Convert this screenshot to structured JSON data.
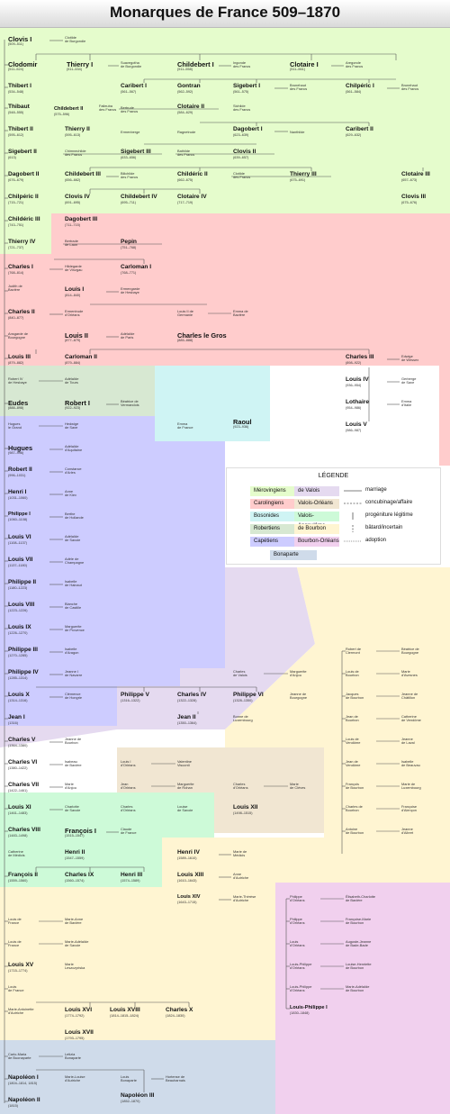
{
  "title": "Monarques de France 509–1870",
  "legend": {
    "title": "LÉGENDE",
    "dynasties": [
      {
        "label": "Mérovingiens",
        "color": "#e5fccc"
      },
      {
        "label": "de Valois",
        "color": "#e5daf0"
      },
      {
        "label": "Carolingiens",
        "color": "#ffcccc"
      },
      {
        "label": "Valois-Orléans",
        "color": "#f1e6d2"
      },
      {
        "label": "Bosonides",
        "color": "#cff4f4"
      },
      {
        "label": "Valois-Angoulême",
        "color": "#cdfad8"
      },
      {
        "label": "Robertiens",
        "color": "#d7e8d2"
      },
      {
        "label": "de Bourbon",
        "color": "#fff5d2"
      },
      {
        "label": "Capétiens",
        "color": "#cdccff"
      },
      {
        "label": "Bourbon-Orléans",
        "color": "#f1d0ee"
      },
      {
        "label": "Bonaparte",
        "color": "#cfdbea"
      }
    ],
    "lines": [
      {
        "label": "marriage",
        "style": "solid"
      },
      {
        "label": "concubinage/affaire",
        "style": "dash"
      },
      {
        "label": "progéniture légitime",
        "style": "vertical"
      },
      {
        "label": "bâtard/incertain",
        "style": "dashvertical"
      },
      {
        "label": "adoption",
        "style": "dotted"
      }
    ]
  },
  "monarchs": [
    {
      "id": "clovis1",
      "name": "Clovis I",
      "dates": "(509–511)",
      "big": true
    },
    {
      "id": "clodomir",
      "name": "Clodomir",
      "dates": "(511–524)",
      "big": true
    },
    {
      "id": "thierry1",
      "name": "Thierry I",
      "dates": "(511–534)",
      "big": true
    },
    {
      "id": "childebert1",
      "name": "Childebert I",
      "dates": "(511–558)",
      "big": true
    },
    {
      "id": "clotaire1",
      "name": "Clotaire I",
      "dates": "(511–561)",
      "big": true
    },
    {
      "id": "thibert1",
      "name": "Thibert I",
      "dates": "(534–548)"
    },
    {
      "id": "caribert1",
      "name": "Caribert I",
      "dates": "(561–567)"
    },
    {
      "id": "gontran",
      "name": "Gontran",
      "dates": "(562–592)"
    },
    {
      "id": "sigebert1",
      "name": "Sigebert I",
      "dates": "(561–575)"
    },
    {
      "id": "chilperic1",
      "name": "Chilpéric I",
      "dates": "(561–584)"
    },
    {
      "id": "thibaut",
      "name": "Thibaut",
      "dates": "(548–555)"
    },
    {
      "id": "childebert2",
      "name": "Childebert II",
      "dates": "(575–596)",
      "small": true
    },
    {
      "id": "clotaire2",
      "name": "Clotaire II",
      "dates": "(584–629)"
    },
    {
      "id": "thibert2",
      "name": "Thibert II",
      "dates": "(595–612)"
    },
    {
      "id": "thierry2",
      "name": "Thierry II",
      "dates": "(595–613)"
    },
    {
      "id": "dagobert1",
      "name": "Dagobert I",
      "dates": "(623–639)"
    },
    {
      "id": "caribert2",
      "name": "Caribert II",
      "dates": "(629–632)"
    },
    {
      "id": "sigebert2",
      "name": "Sigebert II",
      "dates": "(613)"
    },
    {
      "id": "sigebert3",
      "name": "Sigebert III",
      "dates": "(633–656)"
    },
    {
      "id": "clovis2",
      "name": "Clovis II",
      "dates": "(639–657)"
    },
    {
      "id": "dagobert2",
      "name": "Dagobert II",
      "dates": "(676–679)"
    },
    {
      "id": "childebert3",
      "name": "Childebert III",
      "dates": "(656–662)"
    },
    {
      "id": "childeric2",
      "name": "Childéric II",
      "dates": "(662–675)"
    },
    {
      "id": "thierry3",
      "name": "Thierry III",
      "dates": "(675–691)"
    },
    {
      "id": "clotaire3",
      "name": "Clotaire III",
      "dates": "(657–673)"
    },
    {
      "id": "chilperic2",
      "name": "Chilpéric II",
      "dates": "(715–721)"
    },
    {
      "id": "clovis4",
      "name": "Clovis IV",
      "dates": "(691–695)"
    },
    {
      "id": "childebert4",
      "name": "Childebert IV",
      "dates": "(695–711)"
    },
    {
      "id": "clotaire4",
      "name": "Clotaire IV",
      "dates": "(717–719)"
    },
    {
      "id": "clovis3",
      "name": "Clovis III",
      "dates": "(675–676)"
    },
    {
      "id": "childeric3",
      "name": "Childéric III",
      "dates": "(743–751)"
    },
    {
      "id": "dagobert3",
      "name": "Dagobert III",
      "dates": "(711–715)"
    },
    {
      "id": "thierry4",
      "name": "Thierry IV",
      "dates": "(721–737)"
    },
    {
      "id": "pepin",
      "name": "Pepin",
      "dates": "(751–768)"
    },
    {
      "id": "charles1",
      "name": "Charles I",
      "dates": "(768–814)"
    },
    {
      "id": "carloman1",
      "name": "Carloman I",
      "dates": "(768–771)"
    },
    {
      "id": "louis1",
      "name": "Louis I",
      "dates": "(814–840)"
    },
    {
      "id": "charles2",
      "name": "Charles II",
      "dates": "(840–877)"
    },
    {
      "id": "louis2",
      "name": "Louis II",
      "dates": "(877–879)",
      "big": true
    },
    {
      "id": "charles_gros",
      "name": "Charles le Gros",
      "dates": "(885–888)",
      "big": true
    },
    {
      "id": "louis3",
      "name": "Louis III",
      "dates": "(879–882)"
    },
    {
      "id": "carloman2",
      "name": "Carloman II",
      "dates": "(879–884)"
    },
    {
      "id": "charles3",
      "name": "Charles III",
      "dates": "(898–922)"
    },
    {
      "id": "louis4",
      "name": "Louis IV",
      "dates": "(936–954)"
    },
    {
      "id": "lothaire",
      "name": "Lothaire",
      "dates": "(954–986)"
    },
    {
      "id": "louis5",
      "name": "Louis V",
      "dates": "(986–987)"
    },
    {
      "id": "eudes",
      "name": "Eudes",
      "dates": "(888–898)",
      "big": true
    },
    {
      "id": "robert1",
      "name": "Robert I",
      "dates": "(922–923)",
      "big": true
    },
    {
      "id": "raoul",
      "name": "Raoul",
      "dates": "(923–936)",
      "big": true
    },
    {
      "id": "hugues",
      "name": "Hugues",
      "dates": "(987–996)",
      "big": true
    },
    {
      "id": "robert2",
      "name": "Robert II",
      "dates": "(996–1031)"
    },
    {
      "id": "henri1",
      "name": "Henri I",
      "dates": "(1031–1060)"
    },
    {
      "id": "philippe1",
      "name": "Philippe I",
      "dates": "(1060–1108)",
      "small": true
    },
    {
      "id": "louis6",
      "name": "Louis VI",
      "dates": "(1108–1137)"
    },
    {
      "id": "louis7",
      "name": "Louis VII",
      "dates": "(1137–1180)"
    },
    {
      "id": "philippe2",
      "name": "Philippe II",
      "dates": "(1180–1223)"
    },
    {
      "id": "louis8",
      "name": "Louis VIII",
      "dates": "(1223–1226)"
    },
    {
      "id": "louis9",
      "name": "Louis IX",
      "dates": "(1226–1270)"
    },
    {
      "id": "philippe3",
      "name": "Philippe III",
      "dates": "(1270–1285)"
    },
    {
      "id": "philippe4",
      "name": "Philippe IV",
      "dates": "(1285–1314)"
    },
    {
      "id": "louis10",
      "name": "Louis X",
      "dates": "(1314–1316)"
    },
    {
      "id": "philippe5",
      "name": "Philippe V",
      "dates": "(1316–1322)"
    },
    {
      "id": "charles4",
      "name": "Charles IV",
      "dates": "(1322–1328)"
    },
    {
      "id": "philippe6",
      "name": "Philippe VI",
      "dates": "(1328–1350)"
    },
    {
      "id": "jean1",
      "name": "Jean I",
      "dates": "(1316)"
    },
    {
      "id": "jean2",
      "name": "Jean II",
      "dates": "(1350–1364)"
    },
    {
      "id": "charles5",
      "name": "Charles V",
      "dates": "(1364–1380)"
    },
    {
      "id": "charles6",
      "name": "Charles VI",
      "dates": "(1380–1422)"
    },
    {
      "id": "charles7",
      "name": "Charles VII",
      "dates": "(1422–1461)"
    },
    {
      "id": "louis11",
      "name": "Louis XI",
      "dates": "(1461–1483)"
    },
    {
      "id": "louis12",
      "name": "Louis XII",
      "dates": "(1498–1515)"
    },
    {
      "id": "charles8",
      "name": "Charles VIII",
      "dates": "(1483–1498)"
    },
    {
      "id": "francois1",
      "name": "François I",
      "dates": "(1515–1547)",
      "big": true
    },
    {
      "id": "henri2",
      "name": "Henri II",
      "dates": "(1547–1559)"
    },
    {
      "id": "francois2",
      "name": "François II",
      "dates": "(1559–1560)"
    },
    {
      "id": "charles9",
      "name": "Charles IX",
      "dates": "(1560–1574)"
    },
    {
      "id": "henri3",
      "name": "Henri III",
      "dates": "(1574–1589)"
    },
    {
      "id": "henri4",
      "name": "Henri IV",
      "dates": "(1589–1610)"
    },
    {
      "id": "louis13",
      "name": "Louis XIII",
      "dates": "(1610–1643)"
    },
    {
      "id": "louis14",
      "name": "Louis XIV",
      "dates": "(1643–1715)",
      "small": true
    },
    {
      "id": "louis15",
      "name": "Louis XV",
      "dates": "(1715–1774)"
    },
    {
      "id": "louis16",
      "name": "Louis XVI",
      "dates": "(1774–1792)"
    },
    {
      "id": "louis18",
      "name": "Louis XVIII",
      "dates": "(1814–1815–1824)"
    },
    {
      "id": "charles10",
      "name": "Charles X",
      "dates": "(1824–1830)"
    },
    {
      "id": "louis17",
      "name": "Louis XVII",
      "dates": "(1793–1795)"
    },
    {
      "id": "louisphilippe",
      "name": "Louis-Philippe I",
      "dates": "(1830–1848)",
      "small": true
    },
    {
      "id": "napoleon1",
      "name": "Napoléon I",
      "dates": "(1804–1814, 1815)"
    },
    {
      "id": "napoleon2",
      "name": "Napoléon II",
      "dates": "(1815)"
    },
    {
      "id": "napoleon3",
      "name": "Napoléon III",
      "dates": "(1852–1870)"
    }
  ],
  "spouses": [
    {
      "id": "s_clotilde",
      "text": "Clotilde\nde Burgondie"
    },
    {
      "id": "s_suavegotha",
      "text": "Suavegotha\nde Burgondie"
    },
    {
      "id": "s_ingonde",
      "text": "Ingonde\ndes Francs"
    },
    {
      "id": "s_aregonde",
      "text": "Aregonde\ndes Francs"
    },
    {
      "id": "s_brunehaut",
      "text": "Brunehaut\ndes Francs"
    },
    {
      "id": "s_brunehaut2",
      "text": "Brunehaut\ndes Francs"
    },
    {
      "id": "s_faileuba",
      "text": "Faileuba\ndes Francs"
    },
    {
      "id": "s_bertrude",
      "text": "Bertrude\ndes Francs"
    },
    {
      "id": "s_sichilde",
      "text": "Sichilde\ndes Francs"
    },
    {
      "id": "s_ermenberge",
      "text": "Ermenberge"
    },
    {
      "id": "s_ragnetrude",
      "text": "Ragnetrude"
    },
    {
      "id": "s_nanthilde",
      "text": "Nanthilde"
    },
    {
      "id": "s_chimnechilde",
      "text": "Chimnechilde\ndes Francs"
    },
    {
      "id": "s_bathilde",
      "text": "Bathilde\ndes Francs"
    },
    {
      "id": "s_bilichilde",
      "text": "Bilichilde\ndes Francs"
    },
    {
      "id": "s_clotilde2",
      "text": "Clotilde\ndes Francs"
    },
    {
      "id": "s_bertrade",
      "text": "Bertrade\nde Laon"
    },
    {
      "id": "s_hildegarde",
      "text": "Hildegarde\nde Vinzgau"
    },
    {
      "id": "s_judith",
      "text": "Judith de\nBavière"
    },
    {
      "id": "s_ermengarde",
      "text": "Ermengarde\nde Hesbaye"
    },
    {
      "id": "s_ermentrude",
      "text": "Ermentrude\nd'Orléans"
    },
    {
      "id": "s_louisgermanie",
      "text": "Louis II de\nGermanie"
    },
    {
      "id": "s_emma",
      "text": "Emma de\nBavière"
    },
    {
      "id": "s_ansgarde",
      "text": "Ansgarde de\nBourgogne"
    },
    {
      "id": "s_adelaide_paris",
      "text": "Adélaïde\nde Paris"
    },
    {
      "id": "s_edwige",
      "text": "Edwige\nde Wessex"
    },
    {
      "id": "s_gerberge",
      "text": "Gerberge\nde Saxe"
    },
    {
      "id": "s_emma_italie",
      "text": "Emma\nd'Italie"
    },
    {
      "id": "s_robert4",
      "text": "Robert IV\nde Hesbaye"
    },
    {
      "id": "s_adelaide_tours",
      "text": "Adélaïde\nde Tours"
    },
    {
      "id": "s_beatrice",
      "text": "Béatrice de\nVermandois"
    },
    {
      "id": "s_emma_france",
      "text": "Emma\nde France"
    },
    {
      "id": "s_hugues_grand",
      "text": "Hugues\nle Grand"
    },
    {
      "id": "s_hedwige",
      "text": "Hedwige\nde Saxe"
    },
    {
      "id": "s_adelaide_aq",
      "text": "Adélaïde\nd'Aquitaine"
    },
    {
      "id": "s_constance",
      "text": "Constance\nd'Arles"
    },
    {
      "id": "s_anne",
      "text": "Anne\nde Kiev"
    },
    {
      "id": "s_berthe",
      "text": "Berthe\nde Hollande"
    },
    {
      "id": "s_adelaide_savoie",
      "text": "Adélaïde\nde Savoie"
    },
    {
      "id": "s_adele",
      "text": "Adèle de\nChampagne"
    },
    {
      "id": "s_isabelle_h",
      "text": "Isabelle\nde Hainaut"
    },
    {
      "id": "s_blanche",
      "text": "Blanche\nde Castille"
    },
    {
      "id": "s_marguerite_p",
      "text": "Marguerite\nde Provence"
    },
    {
      "id": "s_isabelle_a",
      "text": "Isabelle\nd'Aragon"
    },
    {
      "id": "s_jeanne_n",
      "text": "Jeanne I\nde Navarre"
    },
    {
      "id": "s_charles_valois",
      "text": "Charles\nde Valois"
    },
    {
      "id": "s_marguerite_anjou",
      "text": "Marguerite\nd'Anjou"
    },
    {
      "id": "s_clemence",
      "text": "Clémence\nde Hongrie"
    },
    {
      "id": "s_jeanne_b",
      "text": "Jeanne de\nBourgogne"
    },
    {
      "id": "s_bonne",
      "text": "Bonne de\nLuxembourg"
    },
    {
      "id": "s_jeanne_bourbon",
      "text": "Jeanne de\nBourbon"
    },
    {
      "id": "s_isabeau",
      "text": "Isabeau\nde Bavière"
    },
    {
      "id": "s_louis1_orleans",
      "text": "Louis I\nd'Orléans"
    },
    {
      "id": "s_valentine",
      "text": "Valentine\nVisconti"
    },
    {
      "id": "s_marie_anjou",
      "text": "Marie\nd'Anjou"
    },
    {
      "id": "s_jean_orleans",
      "text": "Jean\nd'Orléans"
    },
    {
      "id": "s_marguerite_rohan",
      "text": "Marguerite\nde Rohan"
    },
    {
      "id": "s_charles_orleans",
      "text": "Charles\nd'Orléans"
    },
    {
      "id": "s_marie_cleves",
      "text": "Marie\nde Clèves"
    },
    {
      "id": "s_charlotte",
      "text": "Charlotte\nde Savoie"
    },
    {
      "id": "s_charles_orleans2",
      "text": "Charles\nd'Orléans"
    },
    {
      "id": "s_louise",
      "text": "Louise\nde Savoie"
    },
    {
      "id": "s_claude",
      "text": "Claude\nde France"
    },
    {
      "id": "s_catherine",
      "text": "Catherine\nde Médicis"
    },
    {
      "id": "s_marie_medicis",
      "text": "Marie de\nMédicis"
    },
    {
      "id": "s_anne_autriche",
      "text": "Anne\nd'Autriche"
    },
    {
      "id": "s_marie_therese",
      "text": "Marie-Thérèse\nd'Autriche"
    },
    {
      "id": "s_robert_clermont",
      "text": "Robert de\nClermont"
    },
    {
      "id": "s_beatrice_bourgogne",
      "text": "Béatrice de\nBourgogne"
    },
    {
      "id": "s_louis_bourbon",
      "text": "Louis de\nBourbon"
    },
    {
      "id": "s_marie_avesnes",
      "text": "Marie\nd'Avesnes"
    },
    {
      "id": "s_jacques_bourbon",
      "text": "Jacques\nde Bourbon"
    },
    {
      "id": "s_jeanne_chatillon",
      "text": "Jeanne de\nChâtillon"
    },
    {
      "id": "s_jean_bourbon",
      "text": "Jean de\nBourbon"
    },
    {
      "id": "s_catherine_vendome",
      "text": "Catherine\nde Vendôme"
    },
    {
      "id": "s_louis_vendome",
      "text": "Louis de\nVendôme"
    },
    {
      "id": "s_jeanne_laval",
      "text": "Jeanne\nde Laval"
    },
    {
      "id": "s_jean_vendome",
      "text": "Jean de\nVendôme"
    },
    {
      "id": "s_isabelle_beauvau",
      "text": "Isabelle\nde Beauvau"
    },
    {
      "id": "s_francois_bourbon",
      "text": "François\nde Bourbon"
    },
    {
      "id": "s_marie_luxembourg",
      "text": "Marie de\nLuxembourg"
    },
    {
      "id": "s_charles_bourbon",
      "text": "Charles de\nBourbon"
    },
    {
      "id": "s_francoise",
      "text": "Françoise\nd'Alençon"
    },
    {
      "id": "s_antoine",
      "text": "Antoine\nde Bourbon"
    },
    {
      "id": "s_jeanne_albret",
      "text": "Jeanne\nd'Albret"
    },
    {
      "id": "s_philippe_orleans1",
      "text": "Philippe\nd'Orléans"
    },
    {
      "id": "s_elisabeth_charlotte",
      "text": "Élisabeth-Charlotte\nde Bavière"
    },
    {
      "id": "s_philippe_orleans2",
      "text": "Philippe\nd'Orléans"
    },
    {
      "id": "s_francoise_marie",
      "text": "Françoise-Marie\nde Bourbon"
    },
    {
      "id": "s_louis_orleans",
      "text": "Louis\nd'Orléans"
    },
    {
      "id": "s_auguste",
      "text": "Auguste-Jeanne\nde Bade-Bade"
    },
    {
      "id": "s_louis_philippe1",
      "text": "Louis-Philippe\nd'Orléans"
    },
    {
      "id": "s_louise_henriette",
      "text": "Louise-Henriette\nde Bourbon"
    },
    {
      "id": "s_louis_philippe2",
      "text": "Louis-Philippe\nd'Orléans"
    },
    {
      "id": "s_marie_adelaide_b",
      "text": "Marie-Adélaïde\nde Bourbon"
    },
    {
      "id": "s_louis_france1",
      "text": "Louis de\nFrance"
    },
    {
      "id": "s_marie_anne",
      "text": "Marie-Anne\nde Bavière"
    },
    {
      "id": "s_louis_france2",
      "text": "Louis de\nFrance"
    },
    {
      "id": "s_marie_adelaide_s",
      "text": "Marie-Adélaïde\nde Savoie"
    },
    {
      "id": "s_marie_leszczynska",
      "text": "Marie\nLeszczyńska"
    },
    {
      "id": "s_louis_france3",
      "text": "Louis\nde France"
    },
    {
      "id": "s_marie_antoinette",
      "text": "Marie-Antoinette\nd'Autriche"
    },
    {
      "id": "s_carlo",
      "text": "Carlo-Maria\nde Buonaparte"
    },
    {
      "id": "s_letizia",
      "text": "Letizia\nBonaparte"
    },
    {
      "id": "s_marie_louise",
      "text": "Marie-Louise\nd'Autriche"
    },
    {
      "id": "s_louis_bonaparte",
      "text": "Louis\nBonaparte"
    },
    {
      "id": "s_hortense",
      "text": "Hortense de\nBeauharnais"
    }
  ]
}
